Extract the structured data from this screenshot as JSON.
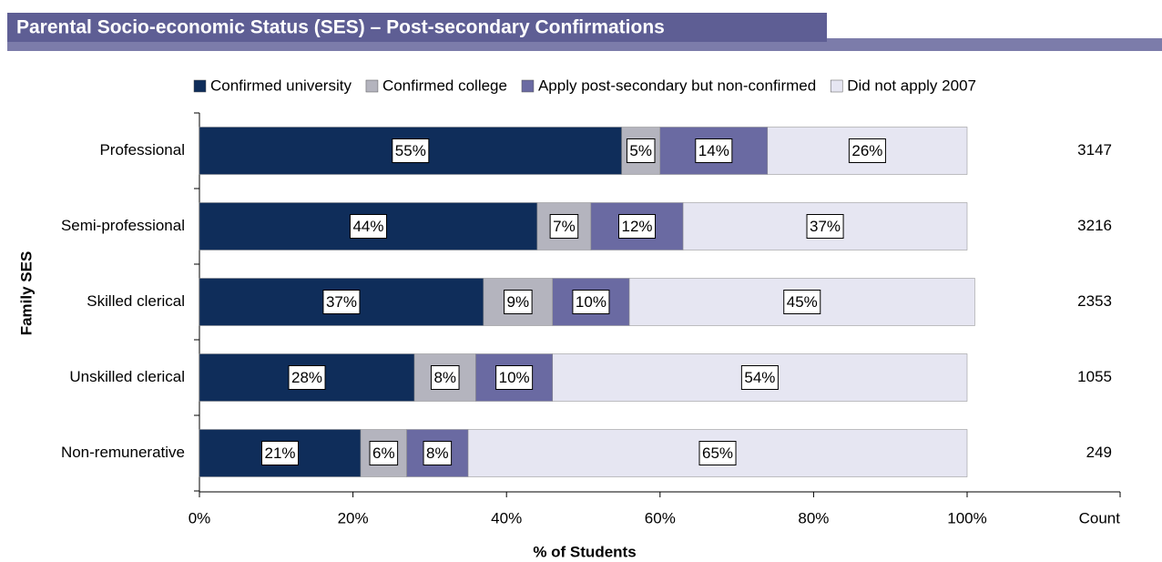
{
  "chart_data": {
    "type": "stacked_barh",
    "title": "Parental Socio-economic Status (SES) – Post-secondary Confirmations",
    "xlabel": "% of Students",
    "ylabel": "Family SES",
    "categories": [
      "Professional",
      "Semi-professional",
      "Skilled clerical",
      "Unskilled clerical",
      "Non-remunerative"
    ],
    "series": [
      {
        "name": "Confirmed university",
        "color": "#0f2d5a",
        "values": [
          55,
          44,
          37,
          28,
          21
        ],
        "value_labels": [
          "55%",
          "44%",
          "37%",
          "28%",
          "21%"
        ]
      },
      {
        "name": "Confirmed college",
        "color": "#b4b4be",
        "values": [
          5,
          7,
          9,
          8,
          6
        ],
        "value_labels": [
          "5%",
          "7%",
          "9%",
          "8%",
          "6%"
        ]
      },
      {
        "name": "Apply post-secondary but non-confirmed",
        "color": "#6a6aa2",
        "values": [
          14,
          12,
          10,
          10,
          8
        ],
        "value_labels": [
          "14%",
          "12%",
          "10%",
          "10%",
          "8%"
        ]
      },
      {
        "name": "Did not apply 2007",
        "color": "#e6e6f2",
        "values": [
          26,
          37,
          45,
          54,
          65
        ],
        "value_labels": [
          "26%",
          "37%",
          "45%",
          "54%",
          "65%"
        ]
      }
    ],
    "xlim": [
      0,
      100
    ],
    "xticks": [
      {
        "value": 0,
        "label": "0%"
      },
      {
        "value": 20,
        "label": "20%"
      },
      {
        "value": 40,
        "label": "40%"
      },
      {
        "value": 60,
        "label": "60%"
      },
      {
        "value": 80,
        "label": "80%"
      },
      {
        "value": 100,
        "label": "100%"
      }
    ],
    "counts": {
      "label": "Count",
      "color": "#1f3a68",
      "values": [
        3147,
        3216,
        2353,
        1055,
        249
      ]
    },
    "legend": "top"
  }
}
